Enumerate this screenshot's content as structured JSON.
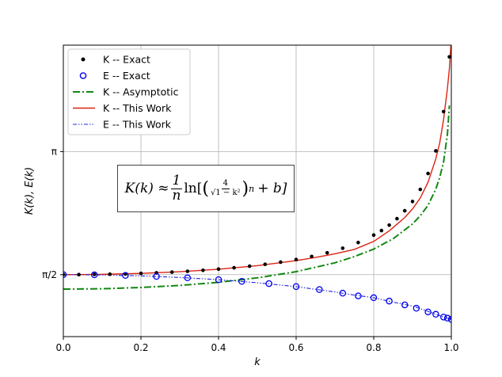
{
  "chart_data": {
    "type": "line",
    "xlabel": "k",
    "ylabel": "K(k), E(k)",
    "xlim": [
      0,
      1
    ],
    "ylim": [
      0.78,
      4.5
    ],
    "x_ticks": [
      0,
      0.2,
      0.4,
      0.6,
      0.8,
      1.0
    ],
    "x_tick_labels": [
      "0.0",
      "0.2",
      "0.4",
      "0.6",
      "0.8",
      "1.0"
    ],
    "y_ticks": [
      1.5708,
      3.1416
    ],
    "y_tick_labels": [
      "π/2",
      "π"
    ],
    "grid": true,
    "legend_position": "top-left",
    "annotation": {
      "lhs": "K(k) ≈",
      "frac_num": "1",
      "frac_den": "n",
      "ln": "ln[",
      "inner_num": "4",
      "inner_den": "√1 − k²",
      "exp": "n",
      "tail": "+ b]"
    },
    "series": [
      {
        "name": "K -- Exact",
        "style": "markers",
        "marker": "filled-circle",
        "color": "#000000",
        "x": [
          0.0,
          0.04,
          0.08,
          0.12,
          0.16,
          0.2,
          0.24,
          0.28,
          0.32,
          0.36,
          0.4,
          0.44,
          0.48,
          0.52,
          0.56,
          0.6,
          0.64,
          0.68,
          0.72,
          0.76,
          0.8,
          0.82,
          0.84,
          0.86,
          0.88,
          0.9,
          0.92,
          0.94,
          0.96,
          0.98,
          0.995
        ],
        "y": [
          1.5708,
          1.5714,
          1.5733,
          1.5765,
          1.581,
          1.5869,
          1.5942,
          1.6031,
          1.6138,
          1.6264,
          1.6412,
          1.6586,
          1.679,
          1.7028,
          1.7308,
          1.7636,
          1.8029,
          1.8501,
          1.9079,
          1.9808,
          2.0754,
          2.1339,
          2.2027,
          2.2853,
          2.3865,
          2.5046,
          2.6585,
          2.862,
          3.1508,
          3.6518,
          4.351
        ]
      },
      {
        "name": "E -- Exact",
        "style": "markers",
        "marker": "open-circle",
        "color": "#0000ee",
        "x": [
          0.0,
          0.08,
          0.16,
          0.24,
          0.32,
          0.4,
          0.46,
          0.53,
          0.6,
          0.66,
          0.72,
          0.76,
          0.8,
          0.84,
          0.88,
          0.91,
          0.94,
          0.96,
          0.98,
          0.99,
          1.0
        ],
        "y": [
          1.5708,
          1.5683,
          1.5607,
          1.5482,
          1.5303,
          1.5066,
          1.485,
          1.4566,
          1.4181,
          1.3801,
          1.3345,
          1.2996,
          1.2763,
          1.233,
          1.1846,
          1.1425,
          1.095,
          1.0651,
          1.0295,
          1.016,
          1.0
        ]
      },
      {
        "name": "K -- Asymptotic",
        "style": "dash-dot",
        "color": "#118811",
        "x": [
          0.0,
          0.1,
          0.2,
          0.3,
          0.4,
          0.5,
          0.6,
          0.7,
          0.75,
          0.8,
          0.85,
          0.9,
          0.92,
          0.94,
          0.96,
          0.97,
          0.98,
          0.99,
          0.995
        ],
        "y": [
          1.386,
          1.391,
          1.407,
          1.433,
          1.473,
          1.53,
          1.609,
          1.722,
          1.801,
          1.897,
          2.029,
          2.218,
          2.322,
          2.457,
          2.662,
          2.811,
          3.008,
          3.368,
          3.73
        ]
      },
      {
        "name": "K -- This Work",
        "style": "solid",
        "color": "#dd2211",
        "x": [
          0.0,
          0.1,
          0.2,
          0.3,
          0.4,
          0.5,
          0.6,
          0.65,
          0.7,
          0.75,
          0.8,
          0.84,
          0.88,
          0.9,
          0.92,
          0.94,
          0.96,
          0.97,
          0.98,
          0.99,
          0.995,
          0.999
        ],
        "y": [
          1.5708,
          1.5747,
          1.5869,
          1.608,
          1.64,
          1.6858,
          1.75,
          1.7898,
          1.8369,
          1.893,
          1.9953,
          2.13,
          2.3,
          2.41,
          2.55,
          2.75,
          3.05,
          3.25,
          3.55,
          3.95,
          4.2,
          4.5
        ]
      },
      {
        "name": "E -- This Work",
        "style": "dash-dot-dot",
        "color": "#2222dd",
        "x": [
          0.0,
          0.1,
          0.2,
          0.3,
          0.4,
          0.5,
          0.6,
          0.7,
          0.75,
          0.8,
          0.85,
          0.9,
          0.93,
          0.96,
          0.98,
          1.0
        ],
        "y": [
          1.5708,
          1.5669,
          1.555,
          1.5348,
          1.5066,
          1.4675,
          1.4181,
          1.35,
          1.31,
          1.2763,
          1.22,
          1.17,
          1.12,
          1.065,
          1.0295,
          1.0
        ]
      }
    ]
  }
}
